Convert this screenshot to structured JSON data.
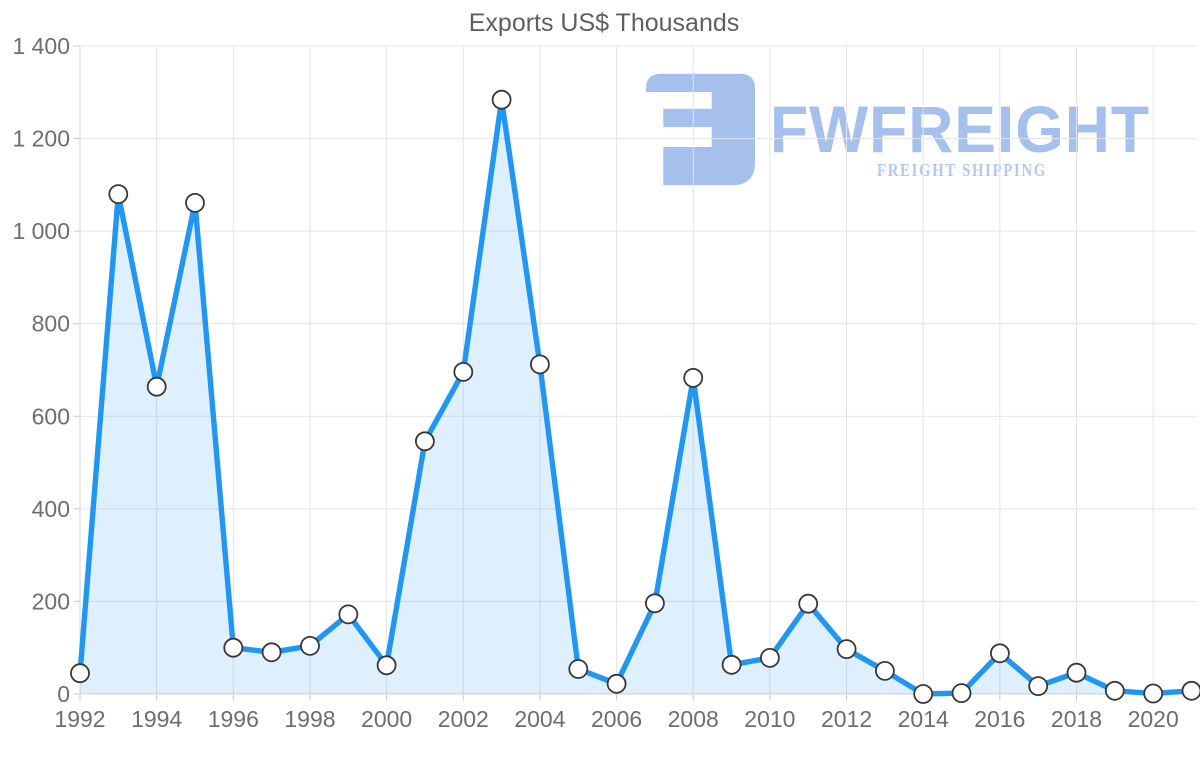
{
  "title": "Exports US$ Thousands",
  "watermark": {
    "brand": "FWFREIGHT",
    "tagline": "FREIGHT SHIPPING"
  },
  "colors": {
    "line": "#2196f3",
    "area_fill": "rgba(33,150,243,0.15)",
    "marker_fill": "#ffffff",
    "marker_stroke": "#383838",
    "gridline": "#e4e4e4",
    "axis_line": "#d6d6d6",
    "tick_mark": "#c9c9c9",
    "tick_label_text": "#6e6e6e",
    "title_text": "#5f5f5f",
    "logo_primary": "#a6c0ee",
    "logo_secondary": "#b2c9f1"
  },
  "chart_data": {
    "type": "area",
    "title": "Exports US$ Thousands",
    "xlabel": "",
    "ylabel": "",
    "series_name": "Exports US$ Thousands",
    "x": [
      1992,
      1993,
      1994,
      1995,
      1996,
      1997,
      1998,
      1999,
      2000,
      2001,
      2002,
      2003,
      2004,
      2005,
      2006,
      2007,
      2008,
      2009,
      2010,
      2011,
      2012,
      2013,
      2014,
      2015,
      2016,
      2017,
      2018,
      2019,
      2020,
      2021
    ],
    "values": [
      45,
      1080,
      664,
      1061,
      100,
      90,
      104,
      172,
      62,
      546,
      696,
      1284,
      712,
      54,
      22,
      196,
      683,
      63,
      78,
      195,
      97,
      50,
      0,
      2,
      88,
      17,
      46,
      7,
      1,
      7
    ],
    "ylim": [
      0,
      1400
    ],
    "ytick_interval": 200,
    "ytick_labels": [
      "0",
      "200",
      "400",
      "600",
      "800",
      "1 000",
      "1 200",
      "1 400"
    ],
    "xtick_years": [
      1992,
      1994,
      1996,
      1998,
      2000,
      2002,
      2004,
      2006,
      2008,
      2010,
      2012,
      2014,
      2016,
      2018,
      2020
    ],
    "xtick_labels": [
      "1992",
      "1994",
      "1996",
      "1998",
      "2000",
      "2002",
      "2004",
      "2006",
      "2008",
      "2010",
      "2012",
      "2014",
      "2016",
      "2018",
      "2020"
    ],
    "grid": true,
    "legend": "none",
    "markers": true
  }
}
